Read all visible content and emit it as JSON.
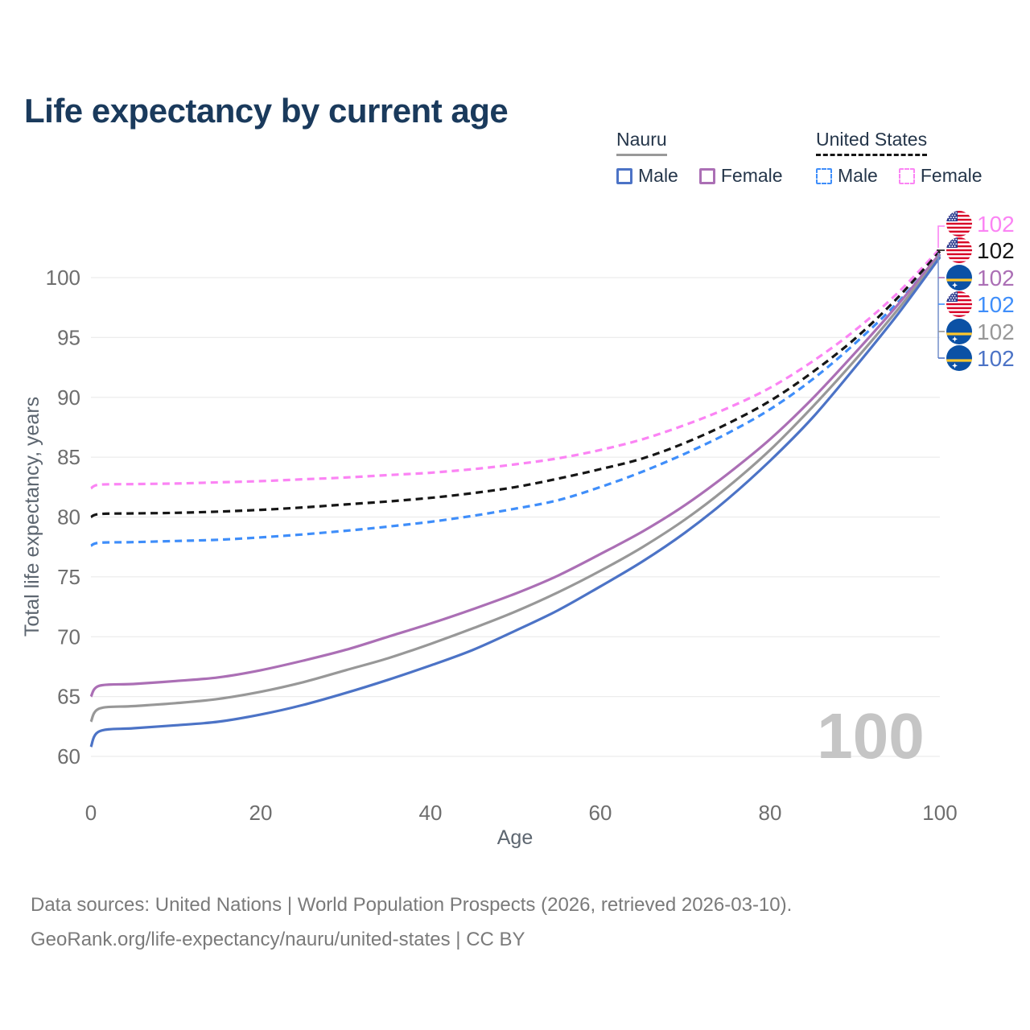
{
  "title": "Life expectancy by current age",
  "age_indicator": "100",
  "legend": {
    "nauru": {
      "label": "Nauru",
      "male": "Male",
      "female": "Female"
    },
    "us": {
      "label": "United States",
      "male": "Male",
      "female": "Female"
    }
  },
  "colors": {
    "title": "#1a3a5c",
    "legend_text": "#25364a",
    "nauru_underline": "#999999",
    "us_underline": "#161616",
    "nauru_male": "#4c73c6",
    "nauru_female": "#ab6fb5",
    "nauru_both": "#989898",
    "us_male": "#3f8efa",
    "us_female": "#fb84f4",
    "us_both": "#161616",
    "axis_text": "#6e6e6e",
    "grid": "#ececec",
    "watermark": "#c5c5c5",
    "footer_text": "#7a7a7a"
  },
  "chart_data": {
    "type": "line",
    "title": "Life expectancy by current age",
    "xlabel": "Age",
    "ylabel": "Total life expectancy, years",
    "xlim": [
      0,
      100
    ],
    "ylim": [
      58,
      103
    ],
    "xticks": [
      0,
      20,
      40,
      60,
      80,
      100
    ],
    "yticks": [
      60,
      65,
      70,
      75,
      80,
      85,
      90,
      95,
      100
    ],
    "grid": "horizontal",
    "legend_position": "top-right",
    "watermark": "100",
    "x": [
      0,
      1,
      5,
      10,
      15,
      20,
      25,
      30,
      35,
      40,
      45,
      50,
      55,
      60,
      65,
      70,
      75,
      80,
      85,
      90,
      95,
      100
    ],
    "series": [
      {
        "name": "United States Female",
        "color": "#fb84f4",
        "dashed": true,
        "end_label": "102",
        "values": [
          82.4,
          82.7,
          82.75,
          82.8,
          82.9,
          83.0,
          83.15,
          83.3,
          83.5,
          83.7,
          84.0,
          84.4,
          84.9,
          85.6,
          86.5,
          87.7,
          89.1,
          90.8,
          93.0,
          95.6,
          98.7,
          102.4
        ]
      },
      {
        "name": "United States Both Sexes",
        "color": "#161616",
        "dashed": true,
        "end_label": "102",
        "values": [
          80.0,
          80.25,
          80.3,
          80.35,
          80.45,
          80.6,
          80.8,
          81.05,
          81.3,
          81.6,
          82.0,
          82.5,
          83.2,
          84.0,
          84.9,
          86.2,
          87.8,
          89.7,
          92.1,
          94.9,
          98.3,
          102.2
        ]
      },
      {
        "name": "United States Male",
        "color": "#3f8efa",
        "dashed": true,
        "end_label": "102",
        "values": [
          77.6,
          77.85,
          77.9,
          78.0,
          78.1,
          78.3,
          78.55,
          78.85,
          79.2,
          79.6,
          80.1,
          80.7,
          81.4,
          82.5,
          83.8,
          85.3,
          87.0,
          89.0,
          91.5,
          94.5,
          97.9,
          101.9
        ]
      },
      {
        "name": "Nauru Female",
        "color": "#ab6fb5",
        "dashed": false,
        "end_label": "102",
        "values": [
          65.0,
          65.9,
          66.05,
          66.3,
          66.6,
          67.2,
          68.0,
          68.9,
          70.0,
          71.1,
          72.3,
          73.6,
          75.1,
          76.9,
          78.8,
          81.0,
          83.6,
          86.5,
          89.9,
          93.7,
          97.7,
          102.0
        ]
      },
      {
        "name": "Nauru Both Sexes",
        "color": "#989898",
        "dashed": false,
        "end_label": "102",
        "values": [
          62.9,
          64.0,
          64.2,
          64.45,
          64.8,
          65.4,
          66.2,
          67.2,
          68.2,
          69.4,
          70.7,
          72.1,
          73.7,
          75.5,
          77.5,
          79.8,
          82.5,
          85.6,
          89.2,
          93.1,
          97.3,
          101.8
        ]
      },
      {
        "name": "Nauru Male",
        "color": "#4c73c6",
        "dashed": false,
        "end_label": "102",
        "values": [
          60.8,
          62.1,
          62.35,
          62.6,
          62.9,
          63.5,
          64.3,
          65.3,
          66.4,
          67.6,
          68.9,
          70.5,
          72.2,
          74.2,
          76.3,
          78.7,
          81.5,
          84.7,
          88.3,
          92.5,
          96.9,
          101.7
        ]
      }
    ]
  },
  "endpoint_labels": [
    {
      "series": "United States Female",
      "value": "102",
      "color": "#fb84f4",
      "flag_ref": "#flag-us",
      "flag_icon": "us-flag-icon"
    },
    {
      "series": "United States Both Sexes",
      "value": "102",
      "color": "#161616",
      "flag_ref": "#flag-us",
      "flag_icon": "us-flag-icon"
    },
    {
      "series": "Nauru Female",
      "value": "102",
      "color": "#ab6fb5",
      "flag_ref": "#flag-nauru",
      "flag_icon": "nauru-flag-icon"
    },
    {
      "series": "United States Male",
      "value": "102",
      "color": "#3f8efa",
      "flag_ref": "#flag-us",
      "flag_icon": "us-flag-icon"
    },
    {
      "series": "Nauru Both Sexes",
      "value": "102",
      "color": "#989898",
      "flag_ref": "#flag-nauru",
      "flag_icon": "nauru-flag-icon"
    },
    {
      "series": "Nauru Male",
      "value": "102",
      "color": "#4c73c6",
      "flag_ref": "#flag-nauru",
      "flag_icon": "nauru-flag-icon"
    }
  ],
  "footer": {
    "line1": "Data sources: United Nations | World Population Prospects (2026, retrieved 2026-03-10).",
    "line2": "GeoRank.org/life-expectancy/nauru/united-states | CC BY"
  }
}
